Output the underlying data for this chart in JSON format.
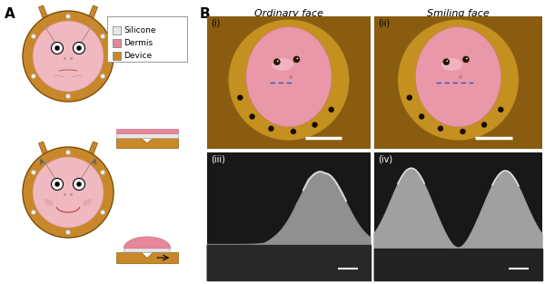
{
  "panel_A_label": "A",
  "panel_B_label": "B",
  "label_i": "(i)",
  "label_ii": "(ii)",
  "label_iii": "(iii)",
  "label_iv": "(iv)",
  "title_ordinary": "Ordinary face",
  "title_smiling": "Smiling face",
  "legend_silicone": "Silicone",
  "legend_dermis": "Dermis",
  "legend_device": "Device",
  "color_silicone": "#e8e8e8",
  "color_dermis": "#e8869a",
  "color_device": "#c8882a",
  "color_skin": "#f0b8c0",
  "color_gold_ring": "#c8882a",
  "color_bg": "#ffffff",
  "color_photo_pink": "#e898a8",
  "color_photo_gold": "#b87820",
  "color_photo_dark_gold": "#8a5c10",
  "color_blue_dashed": "#3355bb",
  "color_sem_bg": "#1a1a1a",
  "color_sem_light": "#c0c0c0",
  "color_sem_mid": "#808080",
  "font_size_AB": 11,
  "font_size_sub": 7,
  "font_size_title": 8,
  "font_size_legend": 6.5
}
